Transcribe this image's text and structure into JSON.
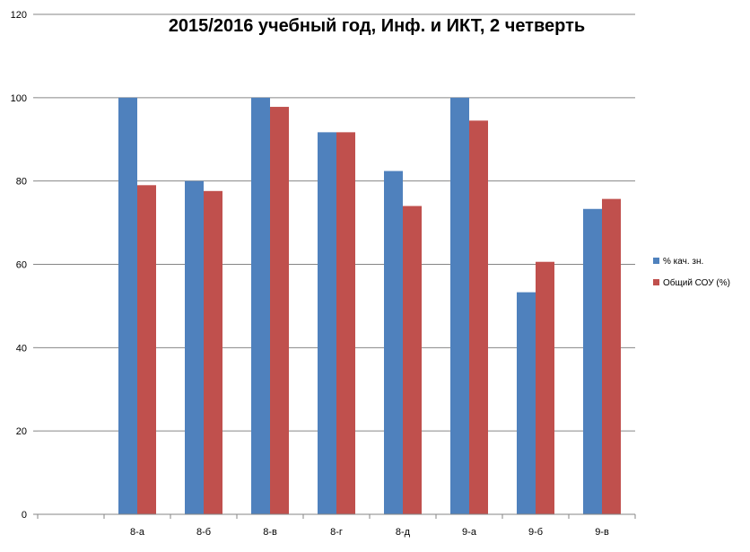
{
  "chart_data": {
    "type": "bar",
    "title": "2015/2016 учебный год, Инф. и ИКТ, 2 четверть",
    "xlabel": "",
    "ylabel": "",
    "categories": [
      "",
      "8-а",
      "8-б",
      "8-в",
      "8-г",
      "8-д",
      "9-а",
      "9-б",
      "9-в"
    ],
    "series": [
      {
        "name": "% кач. зн.",
        "color": "#4F81BD",
        "values": [
          null,
          100,
          80,
          100,
          91.7,
          82.4,
          100,
          53.3,
          73.3
        ]
      },
      {
        "name": "Общий СОУ (%)",
        "color": "#C0504D",
        "values": [
          null,
          79,
          77.6,
          97.8,
          91.7,
          74,
          94.5,
          60.6,
          75.7
        ]
      }
    ],
    "ylim": [
      0,
      120
    ],
    "yticks": [
      0,
      20,
      40,
      60,
      80,
      100,
      120
    ],
    "grid": true,
    "legend_position": "right"
  }
}
